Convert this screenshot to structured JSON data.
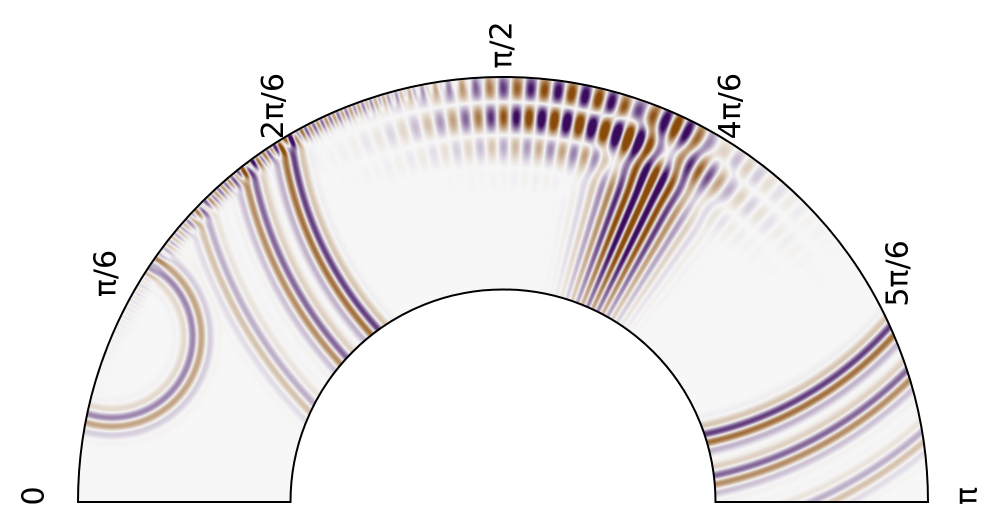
{
  "chart_data": {
    "type": "heatmap",
    "projection": "polar-half-annulus",
    "title": "",
    "xlabel": "",
    "ylabel": "",
    "theta_range": [
      0,
      3.14159
    ],
    "radius_ratio_inner_outer": 0.5,
    "theta_ticks": [
      {
        "value": 0,
        "label": "0"
      },
      {
        "value": 0.5236,
        "label": "π/6"
      },
      {
        "value": 1.0472,
        "label": "2π/6"
      },
      {
        "value": 1.5708,
        "label": "π/2"
      },
      {
        "value": 2.0944,
        "label": "4π/6"
      },
      {
        "value": 2.618,
        "label": "5π/6"
      },
      {
        "value": 3.1416,
        "label": "π"
      }
    ],
    "colormap": [
      "#3a0a5c",
      "#f7f7f7",
      "#8a4a0a"
    ],
    "grid": false,
    "legend": "none",
    "wavefronts": [
      {
        "kind": "arc",
        "center_theta": 1.88,
        "center_r": 1.0,
        "radius": 0.82,
        "amp": 0.9
      },
      {
        "kind": "arc",
        "center_theta": 1.88,
        "center_r": 1.0,
        "radius": 0.92,
        "amp": 0.7
      },
      {
        "kind": "arc",
        "center_theta": 1.88,
        "center_r": 1.0,
        "radius": 1.05,
        "amp": 0.35
      },
      {
        "kind": "arc",
        "center_theta": 0.4,
        "center_r": 1.0,
        "radius": 0.2,
        "amp": 0.55
      }
    ]
  }
}
